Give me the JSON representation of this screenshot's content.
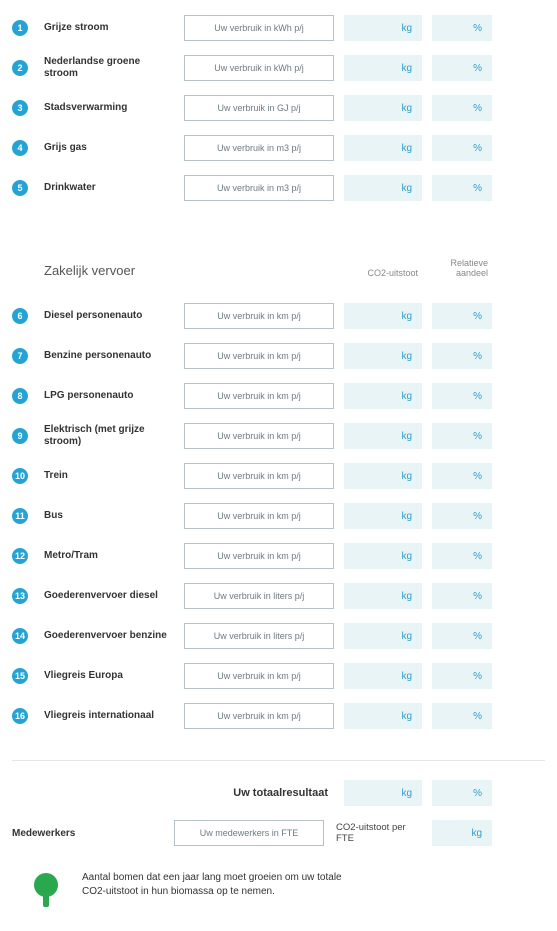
{
  "unit_kg": "kg",
  "unit_pct": "%",
  "colors": {
    "badge_bg": "#25a4d4",
    "metric_bg": "#e9f4f6",
    "metric_text": "#2f9ecb",
    "input_border": "#b7c2c7",
    "tree": "#2aa84f"
  },
  "section1": {
    "rows": [
      {
        "n": "1",
        "label": "Grijze stroom",
        "ph": "Uw verbruik in kWh p/j"
      },
      {
        "n": "2",
        "label": "Nederlandse groene stroom",
        "ph": "Uw verbruik in kWh p/j"
      },
      {
        "n": "3",
        "label": "Stadsverwarming",
        "ph": "Uw verbruik in GJ p/j"
      },
      {
        "n": "4",
        "label": "Grijs gas",
        "ph": "Uw verbruik in m3 p/j"
      },
      {
        "n": "5",
        "label": "Drinkwater",
        "ph": "Uw verbruik in m3 p/j"
      }
    ]
  },
  "section2": {
    "title": "Zakelijk vervoer",
    "col1": "CO2-uitstoot",
    "col2": "Relatieve aandeel",
    "rows": [
      {
        "n": "6",
        "label": "Diesel personenauto",
        "ph": "Uw verbruik in km p/j"
      },
      {
        "n": "7",
        "label": "Benzine personenauto",
        "ph": "Uw verbruik in km p/j"
      },
      {
        "n": "8",
        "label": "LPG personenauto",
        "ph": "Uw verbruik in km p/j"
      },
      {
        "n": "9",
        "label": "Elektrisch (met grijze stroom)",
        "ph": "Uw verbruik in km p/j"
      },
      {
        "n": "10",
        "label": "Trein",
        "ph": "Uw verbruik in km p/j"
      },
      {
        "n": "11",
        "label": "Bus",
        "ph": "Uw verbruik in km p/j"
      },
      {
        "n": "12",
        "label": "Metro/Tram",
        "ph": "Uw verbruik in km p/j"
      },
      {
        "n": "13",
        "label": "Goederenvervoer diesel",
        "ph": "Uw verbruik in liters p/j"
      },
      {
        "n": "14",
        "label": "Goederenvervoer benzine",
        "ph": "Uw verbruik in liters p/j"
      },
      {
        "n": "15",
        "label": "Vliegreis Europa",
        "ph": "Uw verbruik in km p/j"
      },
      {
        "n": "16",
        "label": "Vliegreis internationaal",
        "ph": "Uw verbruik in km p/j"
      }
    ]
  },
  "totals": {
    "total_label": "Uw totaalresultaat",
    "medewerkers_label": "Medewerkers",
    "medewerkers_ph": "Uw medewerkers in FTE",
    "fte_label": "CO2-uitstoot per FTE"
  },
  "tree_text": "Aantal bomen dat een jaar lang moet groeien om uw totale CO2-uitstoot in hun biomassa op te nemen."
}
